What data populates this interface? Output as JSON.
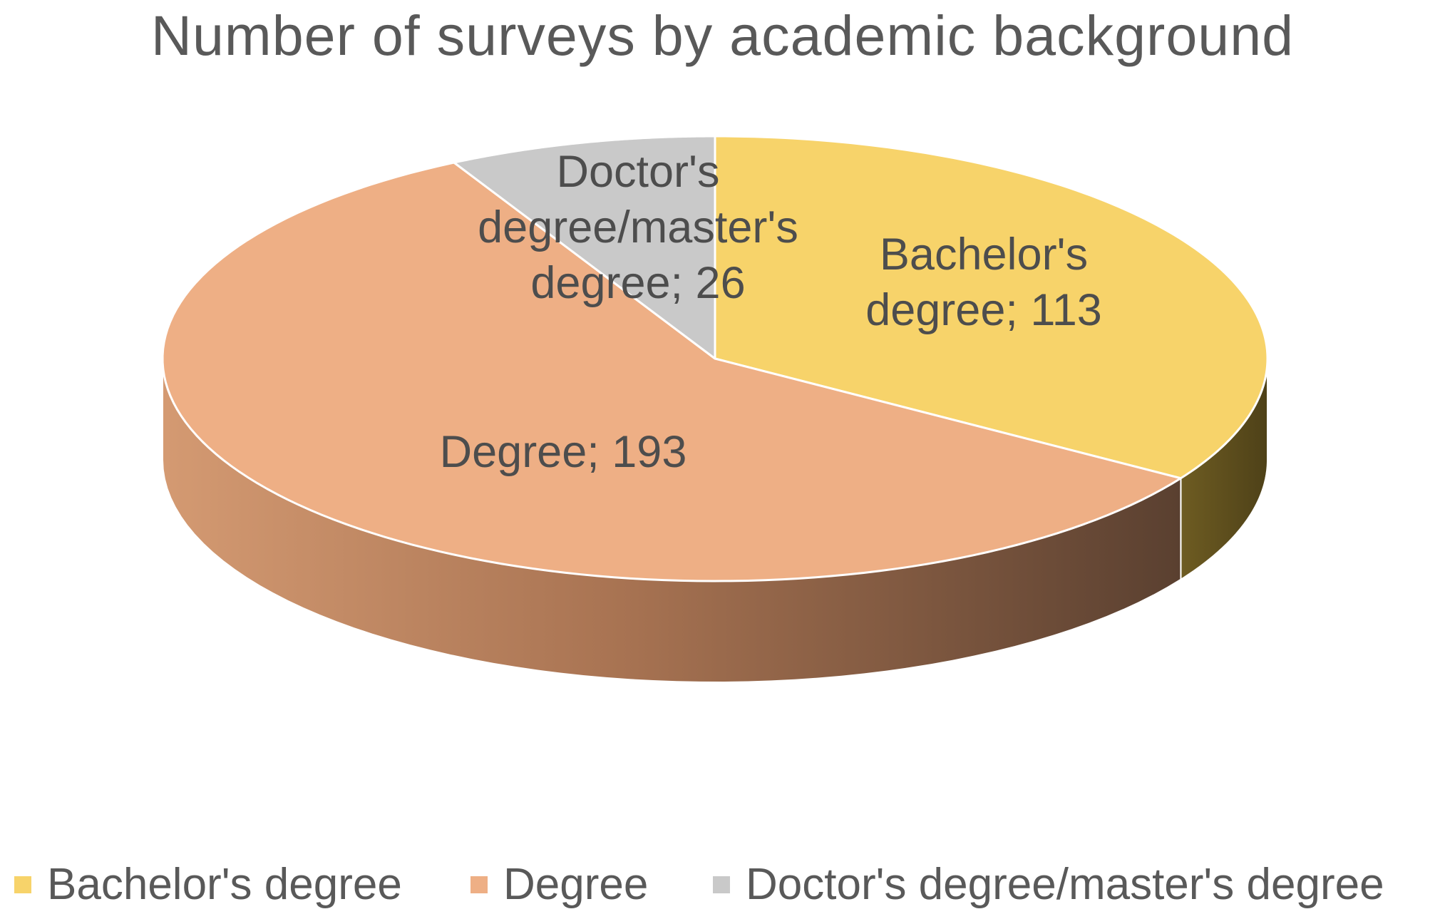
{
  "chart_data": {
    "type": "pie",
    "style": "3d-pie",
    "title": "Number of surveys by academic background",
    "categories": [
      "Bachelor's degree",
      "Degree",
      "Doctor's degree/master's degree"
    ],
    "values": [
      113,
      193,
      26
    ],
    "colors": [
      "#f7d36a",
      "#eeaf85",
      "#c9c9c9"
    ],
    "side_colors": [
      "#6b5a26",
      "#9c6b4a",
      "#8a8a8a"
    ],
    "data_labels": [
      [
        "Bachelor's",
        "degree; 113"
      ],
      [
        "Degree; 193"
      ],
      [
        "Doctor's",
        "degree/master's",
        "degree; 26"
      ]
    ],
    "legend_position": "bottom"
  }
}
